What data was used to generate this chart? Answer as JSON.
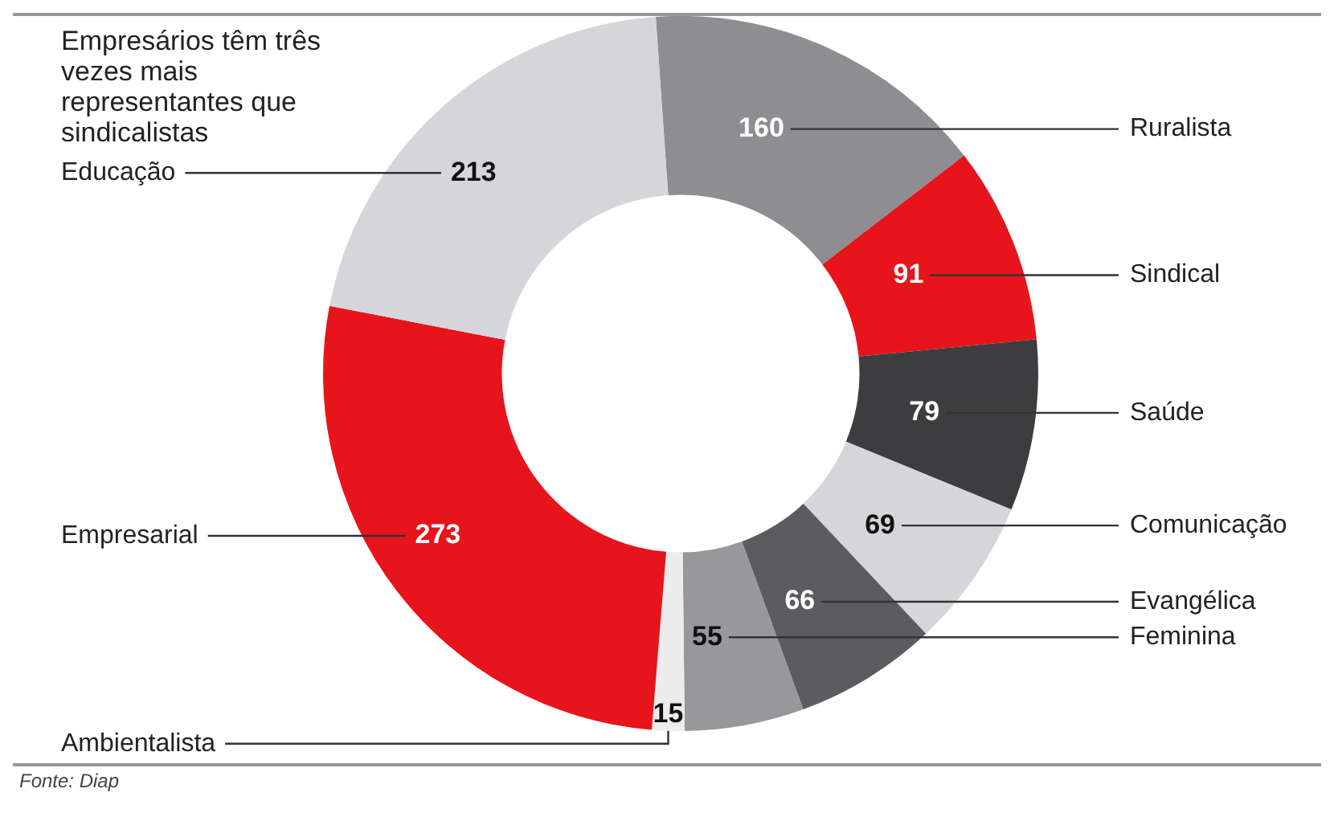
{
  "chart_data": {
    "type": "donut",
    "title": "Empresários têm três vezes mais representantes que sindicalistas",
    "categories": [
      "Ruralista",
      "Sindical",
      "Saúde",
      "Comunicação",
      "Evangélica",
      "Feminina",
      "Ambientalista",
      "Empresarial",
      "Educação"
    ],
    "values": [
      160,
      91,
      79,
      69,
      66,
      55,
      15,
      273,
      213
    ],
    "colors": [
      "#8e8e92",
      "#e8141b",
      "#3d3d3f",
      "#d6d6da",
      "#5c5c60",
      "#98989c",
      "#ececec",
      "#e8141b",
      "#d6d6da"
    ],
    "data_labels": true,
    "legend": false,
    "annotations": [
      "Fonte: Diap"
    ]
  }
}
